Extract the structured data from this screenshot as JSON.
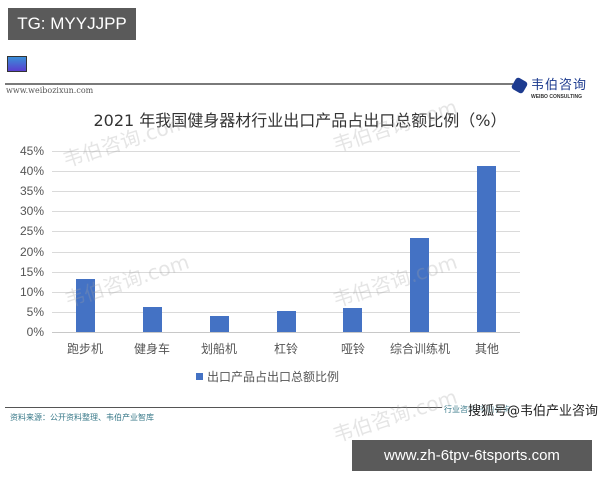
{
  "overlay": {
    "tg_badge": "TG: MYYJJPP",
    "url_banner": "www.zh-6tpv-6tsports.com"
  },
  "header": {
    "site_url": "www.weibozixun.com",
    "logo_cn": "韦伯咨询",
    "logo_en": "WEIBO CONSULTING"
  },
  "footer": {
    "source": "资料来源：公开资料整理、韦伯产业智库",
    "sohu_under": "行业咨询 韦伯咨询",
    "sohu_mark": "搜狐号@韦伯产业咨询"
  },
  "watermarks": [
    "韦伯咨询.com",
    "韦伯咨询.com",
    "韦伯咨询.com",
    "韦伯咨询.com",
    "韦伯咨询.com"
  ],
  "colors": {
    "bar": "#4472c4",
    "grid": "#dadada",
    "overlay": "#5a5a5a"
  },
  "chart_data": {
    "type": "bar",
    "title": "2021 年我国健身器材行业出口产品占出口总额比例（%）",
    "xlabel": "",
    "ylabel": "",
    "categories": [
      "跑步机",
      "健身车",
      "划船机",
      "杠铃",
      "哑铃",
      "综合训练机",
      "其他"
    ],
    "series": [
      {
        "name": "出口产品占出口总额比例",
        "values": [
          13.2,
          6.2,
          4.0,
          5.2,
          5.9,
          23.4,
          41.2
        ]
      }
    ],
    "yticks": [
      "0%",
      "5%",
      "10%",
      "15%",
      "20%",
      "25%",
      "30%",
      "35%",
      "40%",
      "45%"
    ],
    "ylim": [
      0,
      45
    ],
    "grid": true,
    "legend_position": "bottom"
  }
}
